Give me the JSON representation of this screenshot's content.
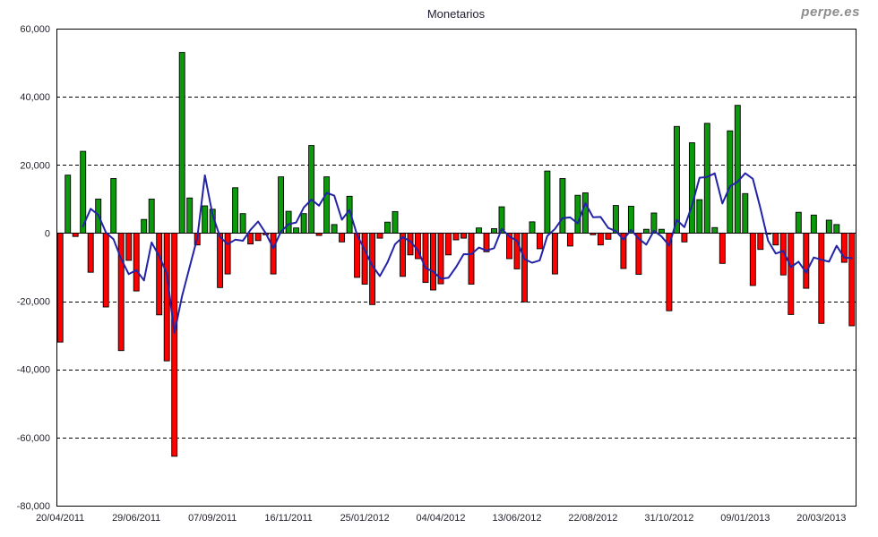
{
  "page": {
    "watermark": "perpe.es",
    "background": "#ffffff"
  },
  "chart_data": {
    "type": "bar+line",
    "title": "Monetarios",
    "frequency": "weekly",
    "y_axis": {
      "min": -80000,
      "max": 60000,
      "tick_step": 20000,
      "tick_labels": [
        "60,000",
        "40,000",
        "20,000",
        "0",
        "-20,000",
        "-40,000",
        "-60,000",
        "-80,000"
      ],
      "gridlines": "dashed"
    },
    "x_axis": {
      "tick_labels": [
        "20/04/2011",
        "29/06/2011",
        "07/09/2011",
        "16/11/2011",
        "25/01/2012",
        "04/04/2012",
        "13/06/2012",
        "22/08/2012",
        "31/10/2012",
        "09/01/2013",
        "20/03/2013"
      ],
      "tick_label_every_n_points": 10,
      "first_label_at_index": 0
    },
    "bar_values": [
      -32000,
      17000,
      -1000,
      24000,
      -11500,
      10000,
      -21700,
      16000,
      -34500,
      -8000,
      -17000,
      4000,
      10000,
      -24000,
      -37500,
      -65500,
      53000,
      10300,
      -3500,
      8000,
      7000,
      -16000,
      -12000,
      13300,
      5700,
      -3200,
      -2200,
      -500,
      -12000,
      16500,
      6400,
      1500,
      5700,
      25700,
      -700,
      16500,
      2500,
      -2600,
      10800,
      -13000,
      -15000,
      -21000,
      -1500,
      3200,
      6300,
      -12700,
      -6400,
      -7500,
      -14500,
      -16700,
      -14900,
      -6400,
      -2000,
      -1500,
      -15000,
      1500,
      -5500,
      1300,
      7700,
      -7500,
      -10500,
      -20200,
      3300,
      -4600,
      18200,
      -12000,
      16000,
      -3800,
      11100,
      11800,
      -500,
      -3500,
      -1800,
      8100,
      -10400,
      7900,
      -12100,
      1100,
      5900,
      1100,
      -22800,
      31300,
      -2600,
      26500,
      9800,
      32200,
      1600,
      -8900,
      30000,
      37500,
      11600,
      -15400,
      -4800,
      -300,
      -3500,
      -12300,
      -23900,
      6100,
      -16200,
      5300,
      -26500,
      3800,
      2500,
      -8600,
      -27200
    ],
    "line_series": {
      "name": "4-week moving average",
      "derivation": "trailing mean of the 4 most recent weekly bar values, first point at index 3",
      "window": 4,
      "color": "#2323a7"
    },
    "colors": {
      "bar_positive": "#0a9a0a",
      "bar_negative": "#ff0000",
      "bar_border": "#000000",
      "grid": "#000000",
      "axis": "#000000",
      "tick_text": "#26222e",
      "title_text": "#1d1d30"
    },
    "legend": "none"
  }
}
